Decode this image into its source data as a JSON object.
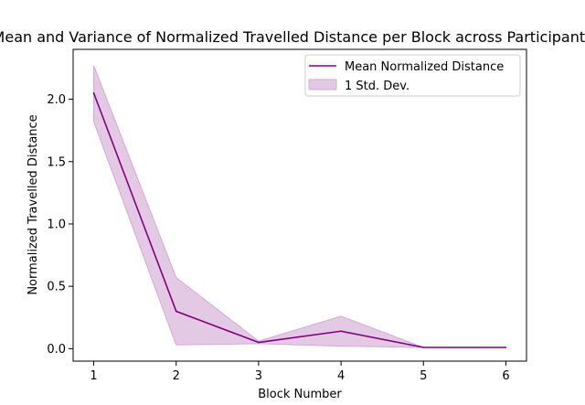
{
  "chart_data": {
    "type": "line",
    "title": "Mean and Variance of Normalized Travelled Distance per Block across Participants",
    "xlabel": "Block Number",
    "ylabel": "Normalized Travelled Distance",
    "x": [
      1,
      2,
      3,
      4,
      5,
      6
    ],
    "xlim": [
      0.75,
      6.25
    ],
    "ylim": [
      -0.1,
      2.4
    ],
    "xticks": [
      "1",
      "2",
      "3",
      "4",
      "5",
      "6"
    ],
    "yticks": [
      "0.0",
      "0.5",
      "1.0",
      "1.5",
      "2.0"
    ],
    "ytick_values": [
      0.0,
      0.5,
      1.0,
      1.5,
      2.0
    ],
    "grid": false,
    "legend_position": "top-right",
    "series": [
      {
        "name": "Mean Normalized Distance",
        "values": [
          2.05,
          0.3,
          0.05,
          0.14,
          0.01,
          0.01
        ],
        "color": "#800080"
      }
    ],
    "band": {
      "name": "1 Std. Dev.",
      "lower": [
        1.82,
        0.03,
        0.04,
        0.02,
        0.01,
        0.01
      ],
      "upper": [
        2.27,
        0.57,
        0.06,
        0.26,
        0.01,
        0.01
      ],
      "fill": "#e3c9e3",
      "stroke": "#d3a8d8"
    }
  }
}
